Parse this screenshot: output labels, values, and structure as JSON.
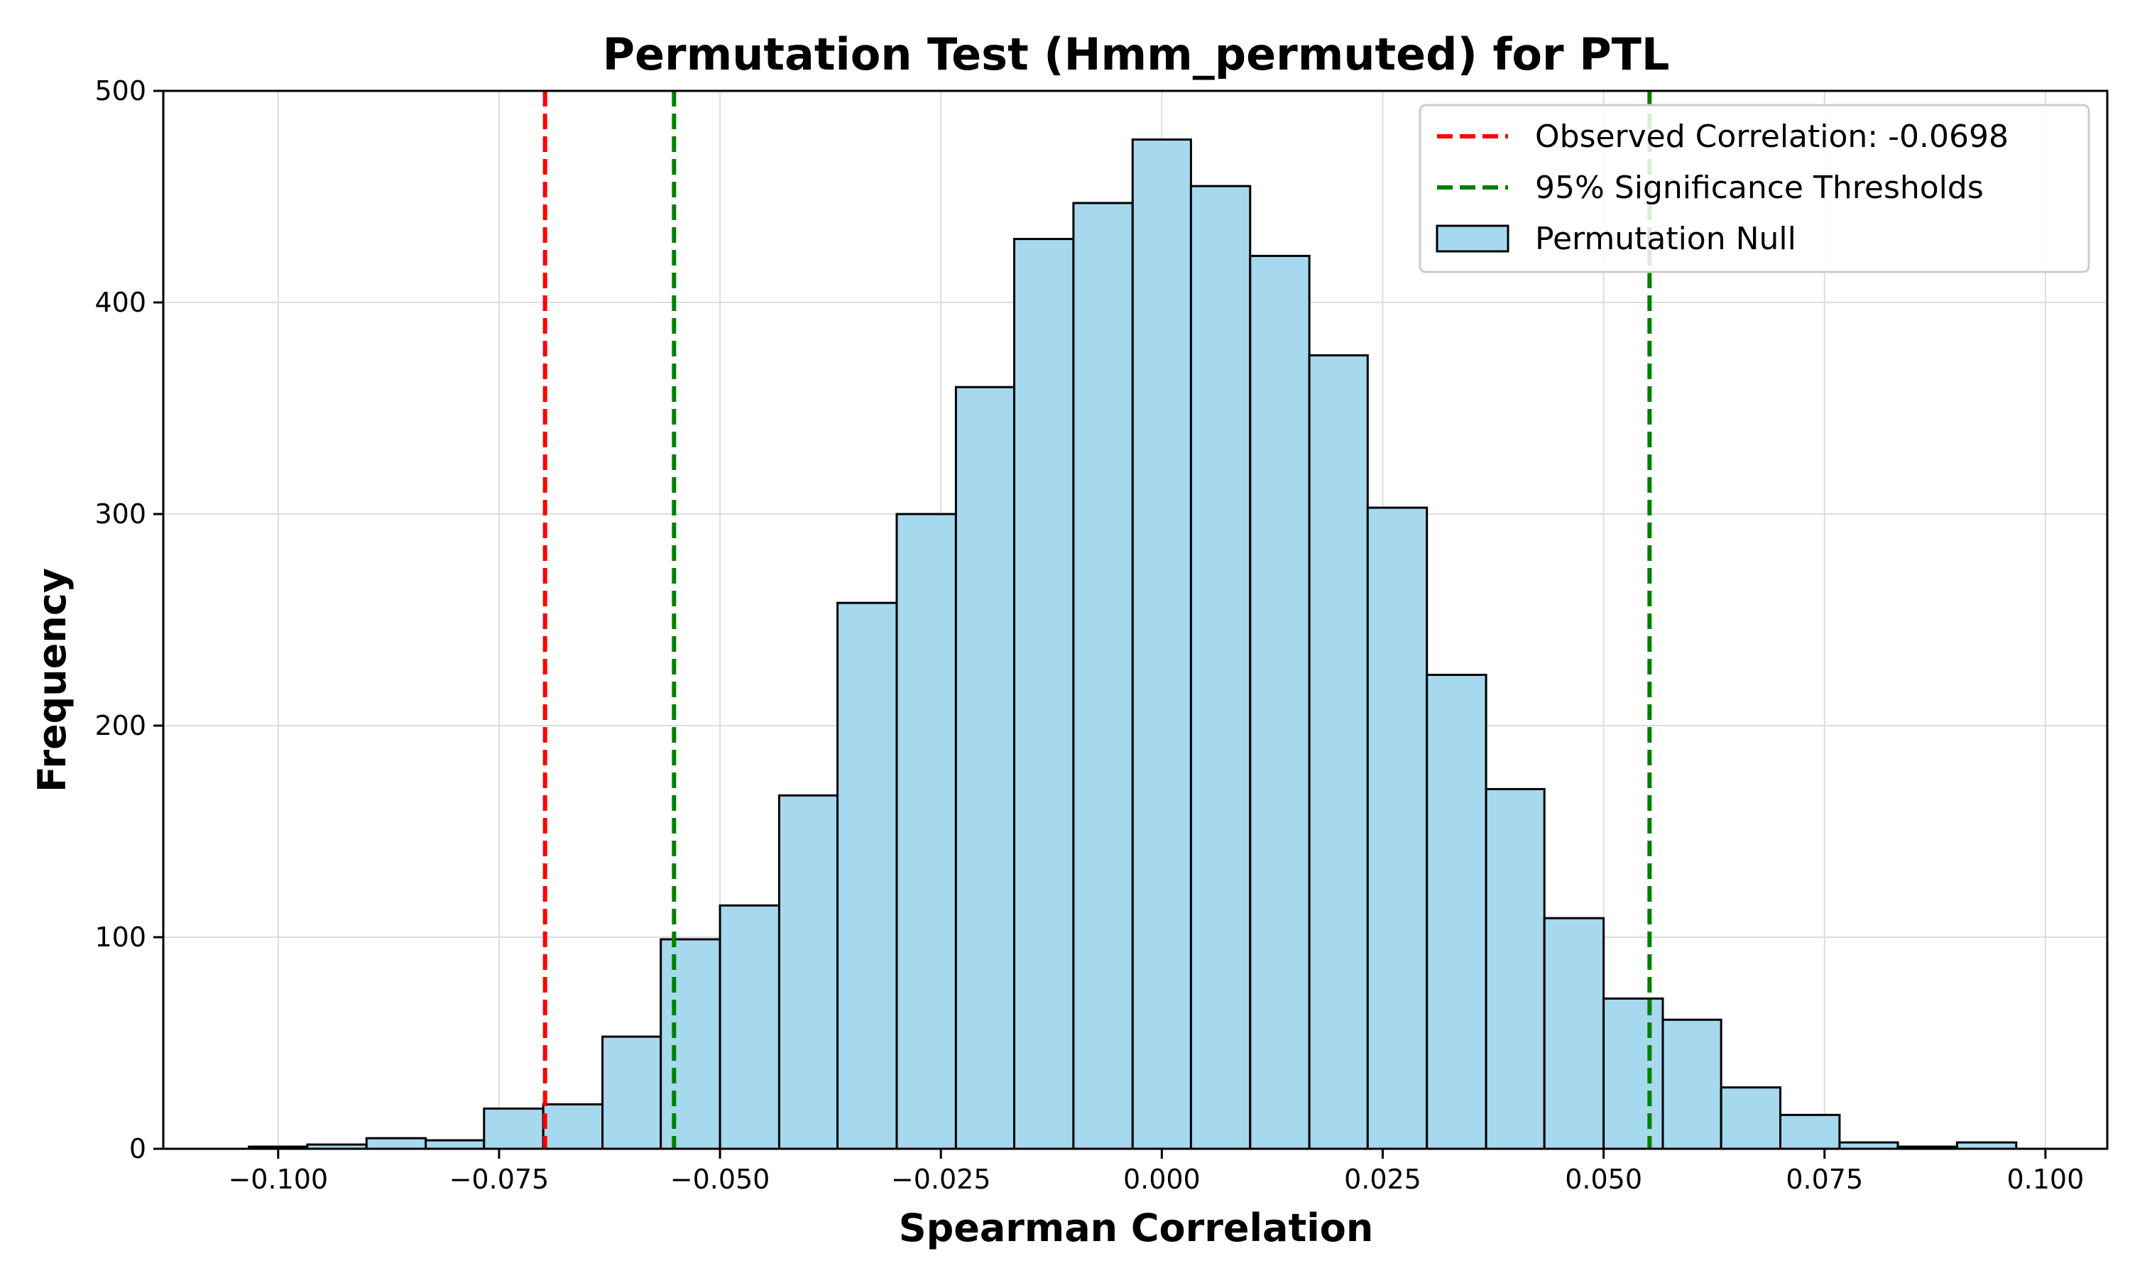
{
  "chart_data": {
    "type": "bar",
    "title": "Permutation Test (Hmm_permuted) for PTL",
    "xlabel": "Spearman Correlation",
    "ylabel": "Frequency",
    "xlim": [
      -0.113,
      0.107
    ],
    "ylim": [
      0,
      500
    ],
    "grid": true,
    "legend_position": "top-right",
    "x_ticks": [
      -0.1,
      -0.075,
      -0.05,
      -0.025,
      0.0,
      0.025,
      0.05,
      0.075,
      0.1
    ],
    "x_tick_labels": [
      "−0.100",
      "−0.075",
      "−0.050",
      "−0.025",
      "0.000",
      "0.025",
      "0.050",
      "0.075",
      "0.100"
    ],
    "y_ticks": [
      0,
      100,
      200,
      300,
      400,
      500
    ],
    "y_tick_labels": [
      "0",
      "100",
      "200",
      "300",
      "400",
      "500"
    ],
    "bins": {
      "edges": [
        -0.1033,
        -0.0967,
        -0.09,
        -0.0833,
        -0.0767,
        -0.07,
        -0.0633,
        -0.0567,
        -0.05,
        -0.0433,
        -0.0367,
        -0.03,
        -0.0233,
        -0.0167,
        -0.01,
        -0.0033,
        0.0033,
        0.01,
        0.0167,
        0.0233,
        0.03,
        0.0367,
        0.0433,
        0.05,
        0.0567,
        0.0633,
        0.07,
        0.0767,
        0.0833,
        0.09,
        0.0967
      ],
      "counts": [
        1,
        2,
        5,
        4,
        19,
        21,
        53,
        99,
        115,
        167,
        258,
        300,
        360,
        430,
        447,
        477,
        455,
        422,
        375,
        303,
        224,
        170,
        109,
        71,
        61,
        29,
        16,
        3,
        1,
        3
      ]
    },
    "series": [
      {
        "name": "Permutation Null",
        "type": "histogram",
        "color": "#a6d8ee",
        "edgecolor": "#000000"
      }
    ],
    "vlines": [
      {
        "name": "Observed Correlation: -0.0698",
        "x": -0.0698,
        "color": "#ff0000",
        "style": "dashed",
        "in_legend": true
      },
      {
        "name": "95% Significance Thresholds",
        "x": -0.0552,
        "color": "#008000",
        "style": "dashed",
        "in_legend": true
      },
      {
        "name": "95% Significance Thresholds",
        "x": 0.0552,
        "color": "#008000",
        "style": "dashed",
        "in_legend": false
      }
    ],
    "legend": [
      {
        "label": "Observed Correlation: -0.0698",
        "kind": "line",
        "color": "#ff0000"
      },
      {
        "label": "95% Significance Thresholds",
        "kind": "line",
        "color": "#008000"
      },
      {
        "label": "Permutation Null",
        "kind": "patch",
        "color": "#a6d8ee"
      }
    ]
  }
}
